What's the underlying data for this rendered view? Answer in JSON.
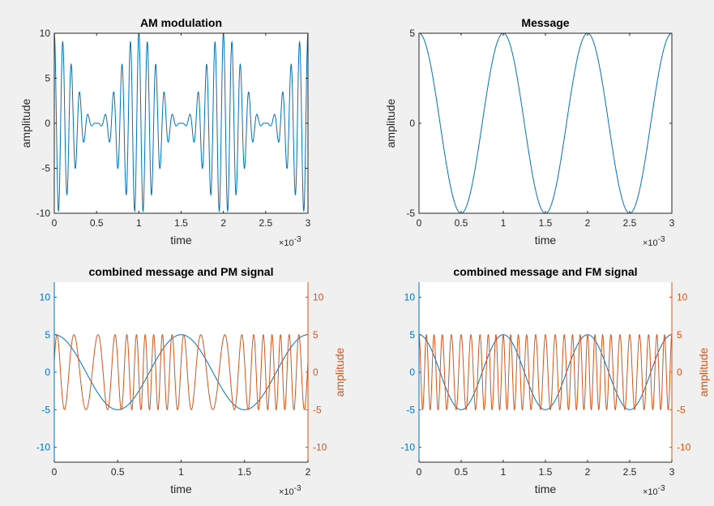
{
  "colors": {
    "figure_bg": "#f0f0f0",
    "axes_bg": "#ffffff",
    "axis": "#262626",
    "series_blue": "#0072bd",
    "series_orange": "#d95319"
  },
  "chart_data": [
    {
      "type": "line",
      "title": "AM modulation",
      "xlabel": "time",
      "ylabel": "amplitude",
      "x_exponent": "×10^-3",
      "xlim": [
        0,
        3
      ],
      "ylim": [
        -10,
        10
      ],
      "xticks": [
        0,
        0.5,
        1,
        1.5,
        2,
        2.5,
        3
      ],
      "xtick_labels": [
        "0",
        "0.5",
        "1",
        "1.5",
        "2",
        "2.5",
        "3"
      ],
      "yticks": [
        -10,
        -5,
        0,
        5,
        10
      ],
      "ytick_labels": [
        "-10",
        "-5",
        "0",
        "5",
        "10"
      ],
      "series": [
        {
          "color": "#0072bd",
          "formula": "5*(1+cos(2*pi*1000*t))*cos(2*pi*10000*t)",
          "t_unit": "1e-3 s",
          "envelope_peaks": [
            [
              0,
              10
            ],
            [
              1,
              10
            ],
            [
              2,
              10
            ],
            [
              3,
              10
            ]
          ],
          "envelope_nulls": [
            [
              0.5,
              0
            ],
            [
              1.5,
              0
            ],
            [
              2.5,
              0
            ]
          ]
        }
      ]
    },
    {
      "type": "line",
      "title": "Message",
      "xlabel": "time",
      "ylabel": "amplitude",
      "x_exponent": "×10^-3",
      "xlim": [
        0,
        3
      ],
      "ylim": [
        -5,
        5
      ],
      "xticks": [
        0,
        0.5,
        1,
        1.5,
        2,
        2.5,
        3
      ],
      "xtick_labels": [
        "0",
        "0.5",
        "1",
        "1.5",
        "2",
        "2.5",
        "3"
      ],
      "yticks": [
        -5,
        0,
        5
      ],
      "ytick_labels": [
        "-5",
        "0",
        "5"
      ],
      "series": [
        {
          "color": "#0072bd",
          "formula": "5*cos(2*pi*1000*t)",
          "t_unit": "1e-3 s",
          "x": [
            0,
            0.5,
            1,
            1.5,
            2,
            2.5,
            3
          ],
          "y": [
            5,
            -5,
            5,
            -5,
            5,
            -5,
            5
          ]
        }
      ]
    },
    {
      "type": "line",
      "title": "combined message and PM signal",
      "xlabel": "time",
      "ylabel_right": "amplitude",
      "x_exponent": "×10^-3",
      "xlim": [
        0,
        2
      ],
      "ylim_left": [
        -12,
        12
      ],
      "ylim_right": [
        -12,
        12
      ],
      "xticks": [
        0,
        0.5,
        1,
        1.5,
        2
      ],
      "xtick_labels": [
        "0",
        "0.5",
        "1",
        "1.5",
        "2"
      ],
      "yticks_left": [
        -10,
        -5,
        0,
        5,
        10
      ],
      "ytick_labels_left": [
        "-10",
        "-5",
        "0",
        "5",
        "10"
      ],
      "yticks_right": [
        -10,
        -5,
        0,
        5,
        10
      ],
      "ytick_labels_right": [
        "-10",
        "-5",
        "0",
        "5",
        "10"
      ],
      "series": [
        {
          "axis": "left",
          "color": "#0072bd",
          "formula": "5*cos(2*pi*1000*t)",
          "t_unit": "1e-3 s"
        },
        {
          "axis": "right",
          "color": "#d95319",
          "formula": "5*cos(2*pi*10000*t + 1*5*cos(2*pi*1000*t))",
          "t_unit": "1e-3 s"
        }
      ]
    },
    {
      "type": "line",
      "title": "combined message and FM signal",
      "xlabel": "time",
      "ylabel_right": "amplitude",
      "x_exponent": "×10^-3",
      "xlim": [
        0,
        3
      ],
      "ylim_left": [
        -12,
        12
      ],
      "ylim_right": [
        -12,
        12
      ],
      "xticks": [
        0,
        0.5,
        1,
        1.5,
        2,
        2.5,
        3
      ],
      "xtick_labels": [
        "0",
        "0.5",
        "1",
        "1.5",
        "2",
        "2.5",
        "3"
      ],
      "yticks_left": [
        -10,
        -5,
        0,
        5,
        10
      ],
      "ytick_labels_left": [
        "-10",
        "-5",
        "0",
        "5",
        "10"
      ],
      "yticks_right": [
        -10,
        -5,
        0,
        5,
        10
      ],
      "ytick_labels_right": [
        "-10",
        "-5",
        "0",
        "5",
        "10"
      ],
      "series": [
        {
          "axis": "left",
          "color": "#0072bd",
          "formula": "5*cos(2*pi*1000*t)",
          "t_unit": "1e-3 s"
        },
        {
          "axis": "right",
          "color": "#d95319",
          "formula": "5*cos(2*pi*10000*t + 1.5*sin(2*pi*1000*t))",
          "t_unit": "1e-3 s"
        }
      ]
    }
  ]
}
